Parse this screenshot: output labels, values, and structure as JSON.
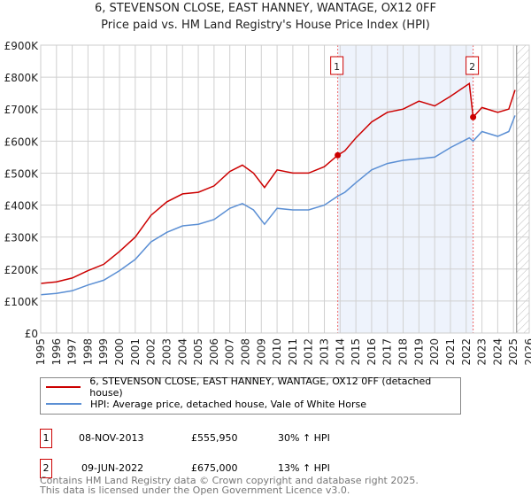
{
  "title": "6, STEVENSON CLOSE, EAST HANNEY, WANTAGE, OX12 0FF",
  "subtitle": "Price paid vs. HM Land Registry's House Price Index (HPI)",
  "chart_data": {
    "type": "line",
    "xlim": [
      1995,
      2026
    ],
    "ylim": [
      0,
      900000
    ],
    "yticks": [
      0,
      100000,
      200000,
      300000,
      400000,
      500000,
      600000,
      700000,
      800000,
      900000
    ],
    "ytick_labels": [
      "£0",
      "£100K",
      "£200K",
      "£300K",
      "£400K",
      "£500K",
      "£600K",
      "£700K",
      "£800K",
      "£900K"
    ],
    "xticks": [
      1995,
      1996,
      1997,
      1998,
      1999,
      2000,
      2001,
      2002,
      2003,
      2004,
      2005,
      2006,
      2007,
      2008,
      2009,
      2010,
      2011,
      2012,
      2013,
      2014,
      2015,
      2016,
      2017,
      2018,
      2019,
      2020,
      2021,
      2022,
      2023,
      2024,
      2025,
      2026
    ],
    "shaded_range": [
      2013.85,
      2022.44
    ],
    "hatched_from": 2025.2,
    "colors": {
      "property": "#cc0000",
      "hpi": "#5b8fd4",
      "shade": "#eef3fc"
    },
    "series": [
      {
        "name": "6, STEVENSON CLOSE, EAST HANNEY, WANTAGE, OX12 0FF (detached house)",
        "x": [
          1995,
          1996,
          1997,
          1998,
          1999,
          2000,
          2001,
          2002,
          2003,
          2004,
          2005,
          2006,
          2007,
          2007.8,
          2008.5,
          2009.2,
          2010,
          2011,
          2012,
          2013,
          2013.85,
          2014.3,
          2015,
          2016,
          2017,
          2018,
          2019,
          2020,
          2021,
          2022.2,
          2022.44,
          2023,
          2024,
          2024.7,
          2025.1
        ],
        "values": [
          155000,
          160000,
          172000,
          195000,
          215000,
          255000,
          300000,
          368000,
          410000,
          435000,
          440000,
          460000,
          505000,
          525000,
          500000,
          455000,
          510000,
          500000,
          500000,
          520000,
          555950,
          570000,
          610000,
          660000,
          690000,
          700000,
          725000,
          710000,
          740000,
          780000,
          675000,
          705000,
          690000,
          700000,
          760000
        ]
      },
      {
        "name": "HPI: Average price, detached house, Vale of White Horse",
        "x": [
          1995,
          1996,
          1997,
          1998,
          1999,
          2000,
          2001,
          2002,
          2003,
          2004,
          2005,
          2006,
          2007,
          2007.8,
          2008.5,
          2009.2,
          2010,
          2011,
          2012,
          2013,
          2013.85,
          2014.3,
          2015,
          2016,
          2017,
          2018,
          2019,
          2020,
          2021,
          2022.2,
          2022.44,
          2023,
          2024,
          2024.7,
          2025.1
        ],
        "values": [
          120000,
          124000,
          132000,
          150000,
          165000,
          195000,
          230000,
          285000,
          315000,
          335000,
          340000,
          355000,
          390000,
          405000,
          385000,
          340000,
          390000,
          385000,
          385000,
          400000,
          428000,
          440000,
          470000,
          510000,
          530000,
          540000,
          545000,
          550000,
          580000,
          610000,
          600000,
          630000,
          615000,
          630000,
          680000
        ]
      }
    ],
    "markers": [
      {
        "label": "1",
        "x": 2013.85,
        "value": 555950
      },
      {
        "label": "2",
        "x": 2022.44,
        "value": 675000
      }
    ]
  },
  "legend": [
    "6, STEVENSON CLOSE, EAST HANNEY, WANTAGE, OX12 0FF (detached house)",
    "HPI: Average price, detached house, Vale of White Horse"
  ],
  "sales": [
    {
      "num": "1",
      "date": "08-NOV-2013",
      "price": "£555,950",
      "hpi": "30% ↑ HPI"
    },
    {
      "num": "2",
      "date": "09-JUN-2022",
      "price": "£675,000",
      "hpi": "13% ↑ HPI"
    }
  ],
  "footer": [
    "Contains HM Land Registry data © Crown copyright and database right 2025.",
    "This data is licensed under the Open Government Licence v3.0."
  ]
}
